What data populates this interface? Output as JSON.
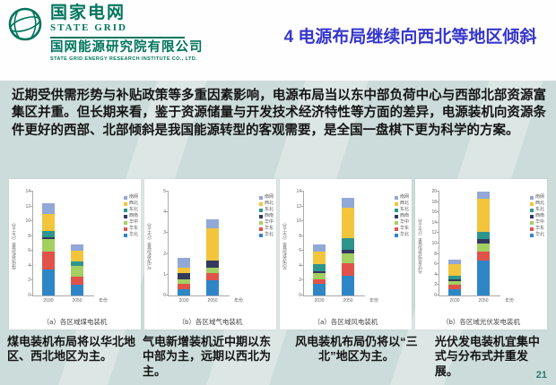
{
  "header": {
    "logo": {
      "icon": "globe-icon",
      "brand_cn": "国家电网",
      "brand_en": "STATE GRID",
      "institute_cn": "国网能源研究院有限公司",
      "institute_en": "STATE GRID ENERGY RESEARCH INSTITUTE CO., LTD."
    },
    "title": "4 电源布局继续向西北等地区倾斜"
  },
  "intro": "近期受供需形势与补贴政策等多重因素影响，电源布局当以东中部负荷中心与西部北部资源富集区并重。但长期来看，鉴于资源储量与开发技术经济特性等方面的差异，电源装机向资源条件更好的西部、北部倾斜是我国能源转型的客观需要，是全国一盘棋下更为科学的方案。",
  "regions": [
    {
      "name": "华北",
      "color": "#2e86c6"
    },
    {
      "name": "华东",
      "color": "#e0534a"
    },
    {
      "name": "华中",
      "color": "#a3cf63"
    },
    {
      "name": "西南",
      "color": "#32395c"
    },
    {
      "name": "东北",
      "color": "#2e958c"
    },
    {
      "name": "西北",
      "color": "#f2c53d"
    },
    {
      "name": "南网",
      "color": "#92a8d6"
    }
  ],
  "chart_data": [
    {
      "type": "bar",
      "stacked": true,
      "caption": "（a）各区域煤电装机",
      "ylabel": "煤电装机容量（亿千瓦）",
      "xlabel": "年份",
      "categories": [
        "2030",
        "2050"
      ],
      "ylim": [
        0,
        14
      ],
      "ystep": 2,
      "legend_position": "right",
      "series": [
        {
          "name": "华北",
          "values": [
            3.5,
            1.4
          ]
        },
        {
          "name": "华东",
          "values": [
            2.4,
            1.2
          ]
        },
        {
          "name": "华中",
          "values": [
            1.65,
            1.4
          ]
        },
        {
          "name": "西南",
          "values": [
            0.35,
            0.05
          ]
        },
        {
          "name": "东北",
          "values": [
            0.85,
            0.55
          ]
        },
        {
          "name": "西北",
          "values": [
            2.25,
            1.5
          ]
        },
        {
          "name": "南网",
          "values": [
            1.4,
            0.8
          ]
        }
      ]
    },
    {
      "type": "bar",
      "stacked": true,
      "caption": "（b）各区域气电装机",
      "ylabel": "气电装机容量（亿千瓦）",
      "xlabel": "年份",
      "categories": [
        "2030",
        "2050"
      ],
      "ylim": [
        0,
        5
      ],
      "ystep": 1,
      "legend_position": "right",
      "series": [
        {
          "name": "华北",
          "values": [
            0.3,
            0.74
          ]
        },
        {
          "name": "华东",
          "values": [
            0.24,
            0.34
          ]
        },
        {
          "name": "华中",
          "values": [
            0.25,
            0.27
          ]
        },
        {
          "name": "西南",
          "values": [
            0.29,
            0.34
          ]
        },
        {
          "name": "东北",
          "values": [
            0,
            0
          ]
        },
        {
          "name": "西北",
          "values": [
            0.27,
            1.55
          ]
        },
        {
          "name": "南网",
          "values": [
            0.47,
            0.4
          ]
        }
      ]
    },
    {
      "type": "bar",
      "stacked": true,
      "caption": "（a）各区域风电装机",
      "ylabel": "风电装机容量（亿千瓦）",
      "xlabel": "年份",
      "categories": [
        "2030",
        "2050"
      ],
      "ylim": [
        0,
        14
      ],
      "ystep": 2,
      "legend_position": "right",
      "series": [
        {
          "name": "华北",
          "values": [
            1.6,
            2.7
          ]
        },
        {
          "name": "华东",
          "values": [
            0.6,
            1.7
          ]
        },
        {
          "name": "华中",
          "values": [
            0.8,
            1.25
          ]
        },
        {
          "name": "西南",
          "values": [
            0.25,
            0.45
          ]
        },
        {
          "name": "东北",
          "values": [
            0.95,
            1.6
          ]
        },
        {
          "name": "西北",
          "values": [
            1.75,
            4.15
          ]
        },
        {
          "name": "南网",
          "values": [
            0.95,
            1.3
          ]
        }
      ]
    },
    {
      "type": "bar",
      "stacked": true,
      "caption": "（b）各区域光伏发电装机",
      "ylabel": "光伏发电装机容量（亿千瓦）",
      "xlabel": "年份",
      "categories": [
        "2030",
        "2050"
      ],
      "ylim": [
        0,
        20
      ],
      "ystep": 2,
      "legend_position": "right",
      "series": [
        {
          "name": "华北",
          "values": [
            1.3,
            6.8
          ]
        },
        {
          "name": "华东",
          "values": [
            0.8,
            1.6
          ]
        },
        {
          "name": "华中",
          "values": [
            0.7,
            1.6
          ]
        },
        {
          "name": "西南",
          "values": [
            0.4,
            0.9
          ]
        },
        {
          "name": "东北",
          "values": [
            0.55,
            1.3
          ]
        },
        {
          "name": "西北",
          "values": [
            2.35,
            6.4
          ]
        },
        {
          "name": "南网",
          "values": [
            0.85,
            1.4
          ]
        }
      ]
    }
  ],
  "footnotes": [
    "煤电装机布局将以华北地区、西北地区为主。",
    "气电新增装机近中期以东中部为主，远期以西北为主。",
    "风电装机布局仍将以“三北”地区为主。",
    "光伏发电装机宜集中式与分布式并重发展。"
  ],
  "page_number": "21",
  "colors": {
    "background": "#ccdcda",
    "header_bg": "#fefefe",
    "brand_green": "#00755e",
    "title_blue": "#3636cd",
    "text_dark": "#141414",
    "page_teal": "#2b7c72"
  }
}
